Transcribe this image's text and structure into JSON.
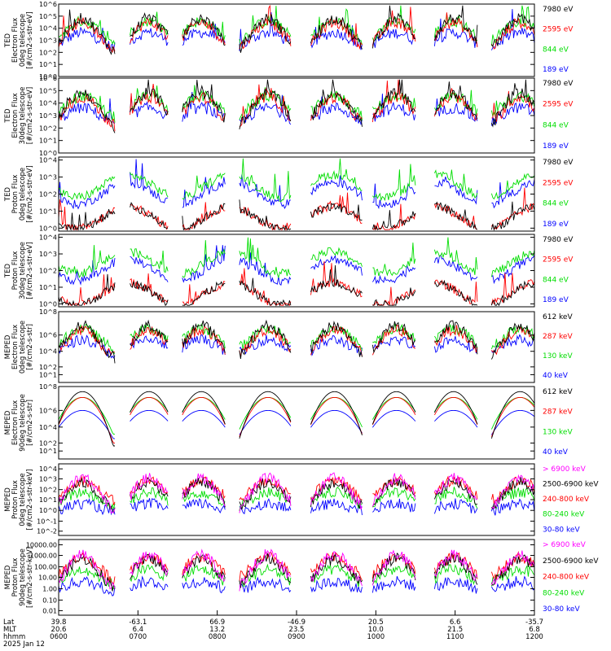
{
  "chart_data": [
    {
      "type": "line",
      "ylabel": [
        "TED",
        "Electron Flux",
        "0deg telescope",
        "[#/cm2-s-str-eV]"
      ],
      "ytick_labels": [
        "10^0",
        "10^1",
        "10^2",
        "10^3",
        "10^4",
        "10^5",
        "10^6"
      ],
      "ylim": [
        1,
        1000000
      ],
      "yscale": "log",
      "series": [
        {
          "name": "7980 eV",
          "color": "#000000"
        },
        {
          "name": "2595 eV",
          "color": "#ff0000"
        },
        {
          "name": "844 eV",
          "color": "#00dd00"
        },
        {
          "name": "189 eV",
          "color": "#0000ff"
        }
      ]
    },
    {
      "type": "line",
      "ylabel": [
        "TED",
        "Electron Flux",
        "30deg telescope",
        "[#/cm2-s-str-eV]"
      ],
      "ytick_labels": [
        "10^0",
        "10^1",
        "10^2",
        "10^3",
        "10^4",
        "10^5",
        "10^6"
      ],
      "ylim": [
        1,
        1000000
      ],
      "yscale": "log",
      "series": [
        {
          "name": "7980 eV",
          "color": "#000000"
        },
        {
          "name": "2595 eV",
          "color": "#ff0000"
        },
        {
          "name": "844 eV",
          "color": "#00dd00"
        },
        {
          "name": "189 eV",
          "color": "#0000ff"
        }
      ]
    },
    {
      "type": "line",
      "ylabel": [
        "TED",
        "Proton Flux",
        "0deg telescope",
        "[#/cm2-s-str-eV]"
      ],
      "ytick_labels": [
        "10^0",
        "10^1",
        "10^2",
        "10^3",
        "10^4"
      ],
      "ylim": [
        1,
        50000
      ],
      "yscale": "log",
      "series": [
        {
          "name": "7980 eV",
          "color": "#000000"
        },
        {
          "name": "2595 eV",
          "color": "#ff0000"
        },
        {
          "name": "844 eV",
          "color": "#00dd00"
        },
        {
          "name": "189 eV",
          "color": "#0000ff"
        }
      ]
    },
    {
      "type": "line",
      "ylabel": [
        "TED",
        "Proton Flux",
        "30deg telescope",
        "[#/cm2-s-str-eV]"
      ],
      "ytick_labels": [
        "10^0",
        "10^1",
        "10^2",
        "10^3",
        "10^4"
      ],
      "ylim": [
        1,
        50000
      ],
      "yscale": "log",
      "series": [
        {
          "name": "7980 eV",
          "color": "#000000"
        },
        {
          "name": "2595 eV",
          "color": "#ff0000"
        },
        {
          "name": "844 eV",
          "color": "#00dd00"
        },
        {
          "name": "189 eV",
          "color": "#0000ff"
        }
      ]
    },
    {
      "type": "line",
      "ylabel": [
        "MEPED",
        "Electron Flux",
        "0deg telescope",
        "[#/cm2-s-str]"
      ],
      "ytick_labels": [
        "10^1",
        "10^2",
        "10^4",
        "10^6",
        "10^8"
      ],
      "ylim": [
        10,
        100000000
      ],
      "yscale": "log",
      "series": [
        {
          "name": "612 keV",
          "color": "#000000"
        },
        {
          "name": "287 keV",
          "color": "#ff0000"
        },
        {
          "name": "130 keV",
          "color": "#00dd00"
        },
        {
          "name": "40 keV",
          "color": "#0000ff"
        }
      ]
    },
    {
      "type": "line",
      "ylabel": [
        "MEPED",
        "Electron Flux",
        "90deg telescope",
        "[#/cm2-s-str]"
      ],
      "ytick_labels": [
        "10^1",
        "10^2",
        "10^4",
        "10^6",
        "10^8"
      ],
      "ylim": [
        10,
        100000000
      ],
      "yscale": "log",
      "series": [
        {
          "name": "612 keV",
          "color": "#000000"
        },
        {
          "name": "287 keV",
          "color": "#ff0000"
        },
        {
          "name": "130 keV",
          "color": "#00dd00"
        },
        {
          "name": "40 keV",
          "color": "#0000ff"
        }
      ]
    },
    {
      "type": "line",
      "ylabel": [
        "MEPED",
        "Proton Flux",
        "0deg telescope",
        "[#/cm2-s-str-keV]"
      ],
      "ytick_labels": [
        "10^-2",
        "10^-1",
        "10^0",
        "10^1",
        "10^2",
        "10^3",
        "10^4"
      ],
      "ylim": [
        0.01,
        10000
      ],
      "yscale": "log",
      "series": [
        {
          "name": "> 6900 keV",
          "color": "#ff00ff"
        },
        {
          "name": "2500-6900 keV",
          "color": "#000000"
        },
        {
          "name": "240-800 keV",
          "color": "#ff0000"
        },
        {
          "name": "80-240 keV",
          "color": "#00dd00"
        },
        {
          "name": "30-80 keV",
          "color": "#0000ff"
        }
      ]
    },
    {
      "type": "line",
      "ylabel": [
        "MEPED",
        "Proton Flux",
        "90deg telescope",
        "[#/cm2-s-str-keV]"
      ],
      "ytick_labels": [
        "0.01",
        "0.10",
        "1.00",
        "10.00",
        "100.00",
        "1000.00",
        "10000.00"
      ],
      "ylim": [
        0.01,
        10000
      ],
      "yscale": "log",
      "series": [
        {
          "name": "> 6900 keV",
          "color": "#ff00ff"
        },
        {
          "name": "2500-6900 keV",
          "color": "#000000"
        },
        {
          "name": "240-800 keV",
          "color": "#ff0000"
        },
        {
          "name": "80-240 keV",
          "color": "#00dd00"
        },
        {
          "name": "30-80 keV",
          "color": "#0000ff"
        }
      ]
    }
  ],
  "x_axis": {
    "row_labels": [
      "Lat",
      "MLT",
      "hhmm"
    ],
    "ticks": [
      {
        "Lat": "39.8",
        "MLT": "20.6",
        "hhmm": "0600"
      },
      {
        "Lat": "-63.1",
        "MLT": "6.4",
        "hhmm": "0700"
      },
      {
        "Lat": "66.9",
        "MLT": "13.2",
        "hhmm": "0800"
      },
      {
        "Lat": "-46.9",
        "MLT": "23.5",
        "hhmm": "0900"
      },
      {
        "Lat": "20.5",
        "MLT": "10.0",
        "hhmm": "1000"
      },
      {
        "Lat": "6.6",
        "MLT": "21.5",
        "hhmm": "1100"
      },
      {
        "Lat": "-35.7",
        "MLT": "6.8",
        "hhmm": "1200"
      }
    ],
    "date": "2025 Jan 12"
  },
  "colors": {
    "black": "#000000",
    "red": "#ff0000",
    "green": "#00dd00",
    "blue": "#0000ff",
    "magenta": "#ff00ff"
  }
}
